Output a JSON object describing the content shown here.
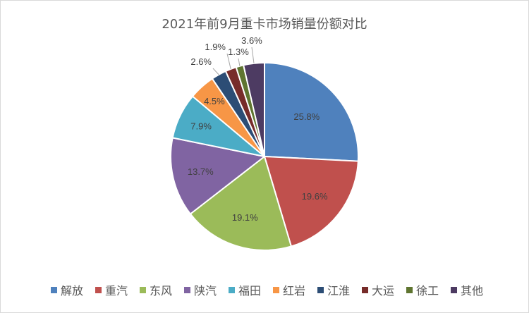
{
  "chart_data": {
    "type": "pie",
    "title": "2021年前9月重卡市场销量份额对比",
    "categories": [
      "解放",
      "重汽",
      "东风",
      "陕汽",
      "福田",
      "红岩",
      "江淮",
      "大运",
      "徐工",
      "其他"
    ],
    "values": [
      25.8,
      19.6,
      19.1,
      13.7,
      7.9,
      4.5,
      2.6,
      1.9,
      1.3,
      3.6
    ],
    "labels": [
      "25.8%",
      "19.6%",
      "19.1%",
      "13.7%",
      "7.9%",
      "4.5%",
      "2.6%",
      "1.9%",
      "1.3%",
      "3.6%"
    ],
    "colors": [
      "#4F81BD",
      "#C0504D",
      "#9BBB59",
      "#8064A2",
      "#4BACC6",
      "#F79646",
      "#2C4D75",
      "#772C2A",
      "#5F7530",
      "#4D3B62"
    ],
    "legend_position": "bottom"
  }
}
